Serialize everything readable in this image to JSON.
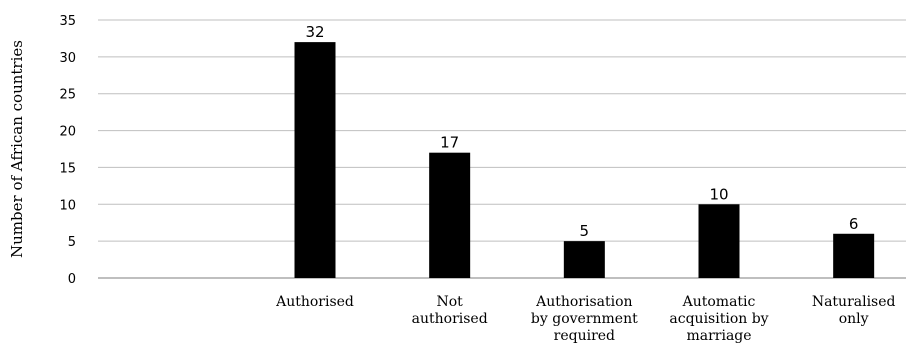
{
  "chart_data": {
    "type": "bar",
    "ylabel": "Number of African countries",
    "xlabel": "",
    "ylim": [
      0,
      35
    ],
    "yticks": [
      0,
      5,
      10,
      15,
      20,
      25,
      30,
      35
    ],
    "grid": true,
    "legend": "none",
    "bar_color": "#000000",
    "categories": [
      "",
      "Authorised",
      "Not authorised",
      "Authorisation by government required",
      "Automatic acquisition by marriage",
      "Naturalised only"
    ],
    "category_lines": [
      [],
      [
        "Authorised"
      ],
      [
        "Not",
        "authorised"
      ],
      [
        "Authorisation",
        "by government",
        "required"
      ],
      [
        "Automatic",
        "acquisition by",
        "marriage"
      ],
      [
        "Naturalised",
        "only"
      ]
    ],
    "values": [
      null,
      32,
      17,
      5,
      10,
      6
    ],
    "data_labels": [
      "",
      "32",
      "17",
      "5",
      "10",
      "6"
    ]
  }
}
